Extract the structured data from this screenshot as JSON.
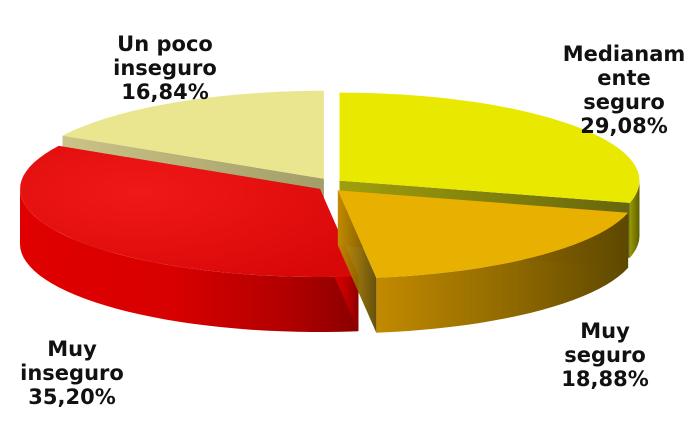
{
  "chart_data": {
    "type": "pie",
    "style": "3d-exploded",
    "legend": "none",
    "slices": [
      {
        "name": "Medianamente seguro",
        "label": "Medianam\nente\nseguro",
        "pct_label": "29,08%",
        "value": 29.08,
        "color": "#E8E800"
      },
      {
        "name": "Muy seguro",
        "label": "Muy\nseguro",
        "pct_label": "18,88%",
        "value": 18.88,
        "color": "#E8B000"
      },
      {
        "name": "Muy inseguro",
        "label": "Muy\ninseguro",
        "pct_label": "35,20%",
        "value": 35.2,
        "color": "#E01010"
      },
      {
        "name": "Un poco inseguro",
        "label": "Un poco\ninseguro",
        "pct_label": "16,84%",
        "value": 16.84,
        "color": "#EAE690"
      }
    ]
  }
}
